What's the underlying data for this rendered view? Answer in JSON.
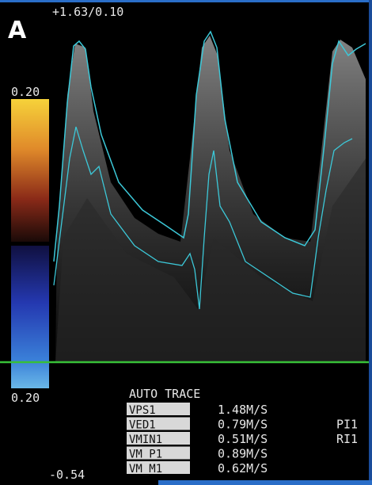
{
  "panel_label": "A",
  "header": "+1.63/0.10",
  "scale": {
    "top": "0.20",
    "bottom": "0.20",
    "baseline": "-0.54"
  },
  "trace": {
    "title": "AUTO TRACE",
    "rows": [
      [
        "VPS1",
        "1.48M/S"
      ],
      [
        "VED1",
        "0.79M/S",
        "PI1"
      ],
      [
        "VMIN1",
        "0.51M/S",
        "RI1"
      ],
      [
        "VM_P1",
        "0.89M/S"
      ],
      [
        "VM_M1",
        "0.62M/S"
      ]
    ]
  }
}
